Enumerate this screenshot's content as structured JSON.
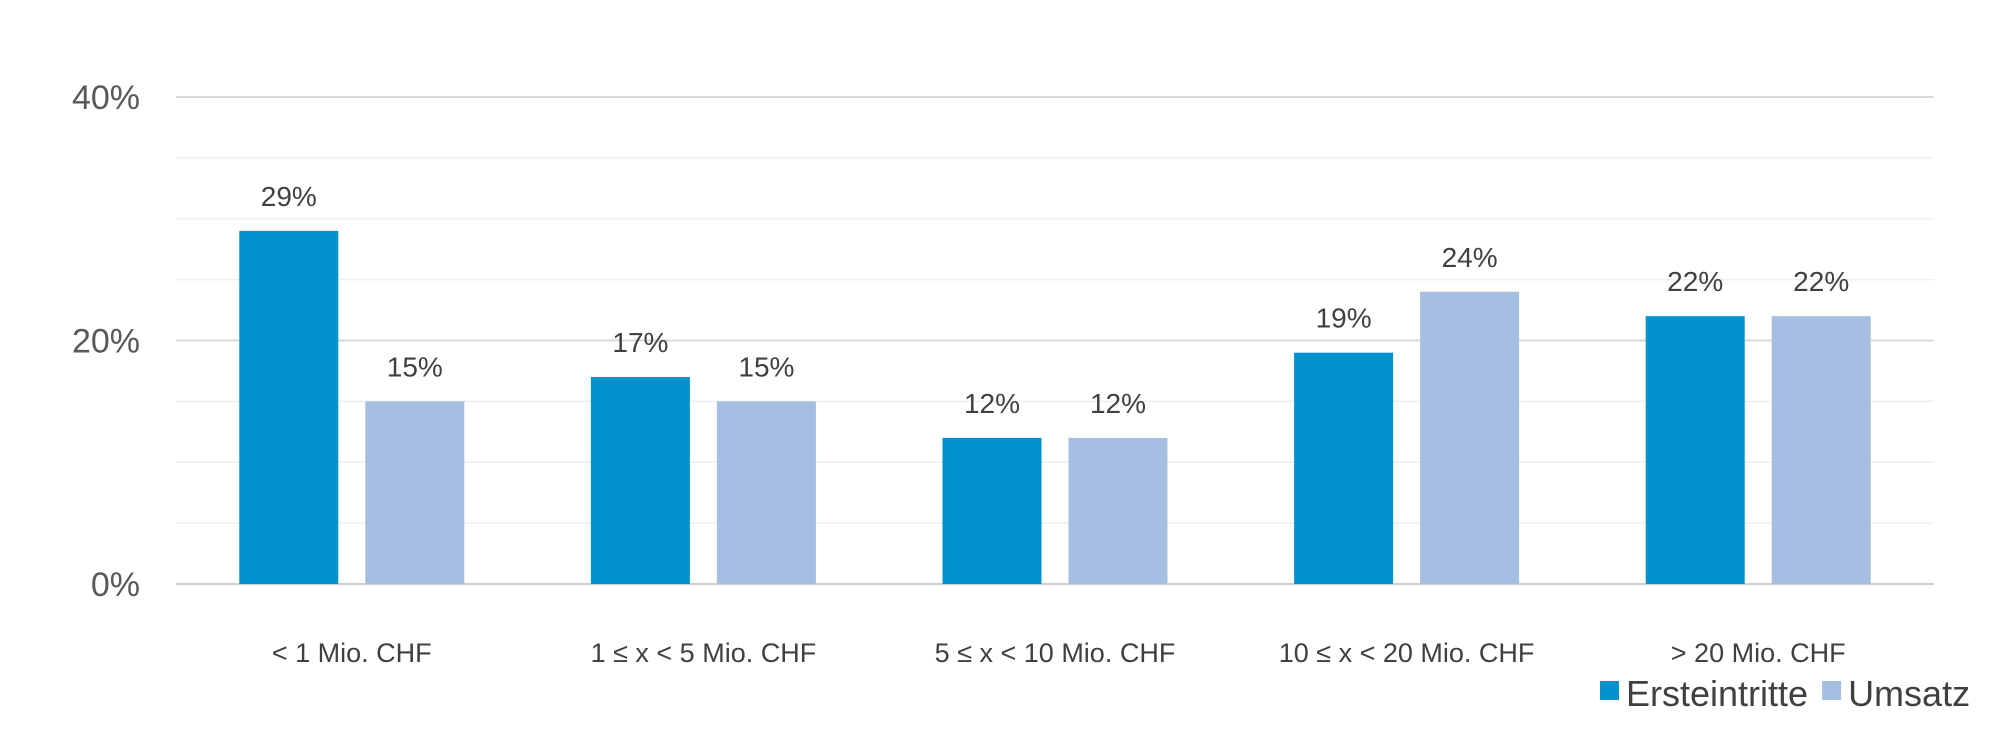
{
  "chart_data": {
    "type": "bar",
    "categories": [
      "< 1 Mio. CHF",
      "1 ≤ x < 5 Mio. CHF",
      "5 ≤ x < 10 Mio. CHF",
      "10 ≤ x < 20 Mio. CHF",
      "> 20 Mio. CHF"
    ],
    "series": [
      {
        "name": "Ersteintritte",
        "values": [
          29,
          17,
          12,
          19,
          22
        ],
        "labels": [
          "29%",
          "17%",
          "12%",
          "19%",
          "22%"
        ],
        "color": "#0091CF"
      },
      {
        "name": "Umsatz",
        "values": [
          15,
          15,
          12,
          24,
          22
        ],
        "labels": [
          "15%",
          "15%",
          "12%",
          "24%",
          "22%"
        ],
        "color": "#A4BFE2"
      }
    ],
    "ylim": [
      0,
      40
    ],
    "yticks": [
      0,
      20,
      40
    ],
    "ytick_labels": [
      "0%",
      "20%",
      "40%"
    ],
    "grid": true,
    "legend": "bottom-right",
    "title": "",
    "xlabel": "",
    "ylabel": ""
  }
}
